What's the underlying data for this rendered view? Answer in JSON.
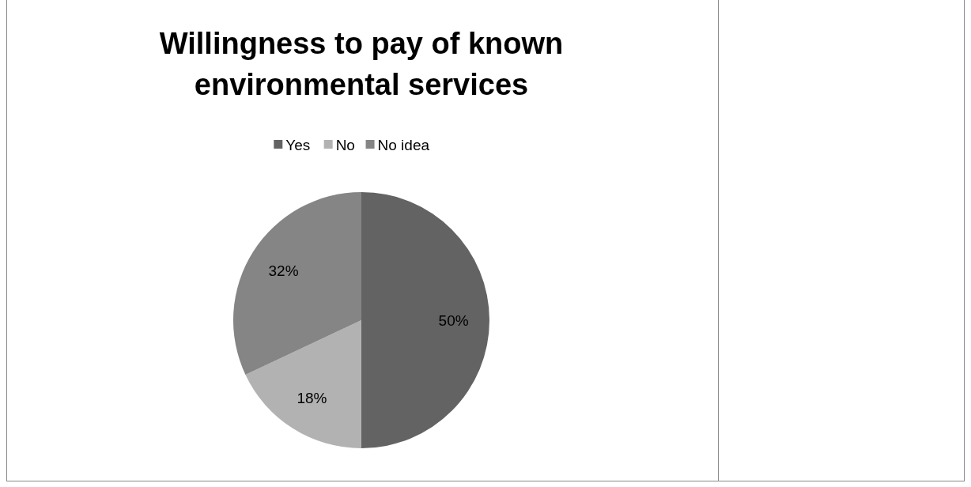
{
  "chart_data": {
    "type": "pie",
    "title": "Willingness to pay of known environmental services",
    "categories": [
      "Yes",
      "No",
      "No idea"
    ],
    "values": [
      50,
      18,
      32
    ],
    "value_labels": [
      "50%",
      "18%",
      "32%"
    ],
    "colors": [
      "#636363",
      "#b2b2b2",
      "#858585"
    ],
    "legend": "top"
  }
}
